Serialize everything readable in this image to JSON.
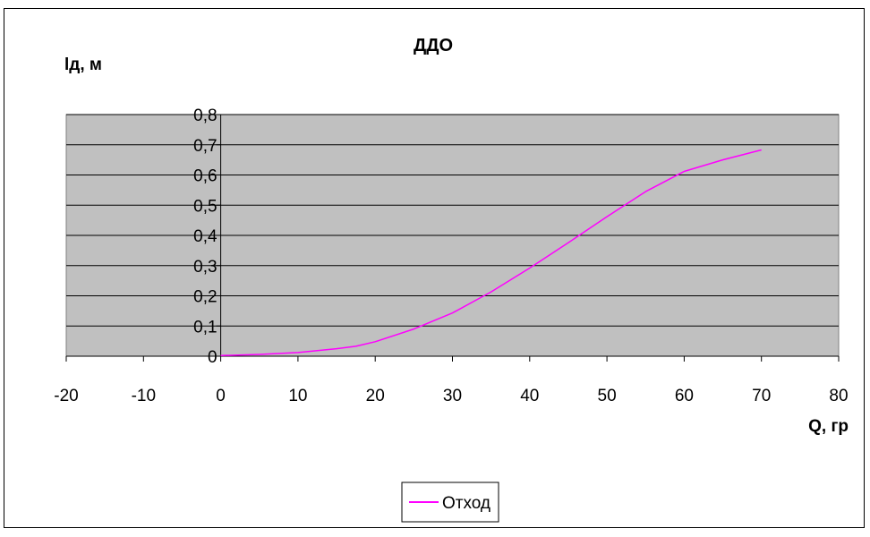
{
  "chart_data": {
    "type": "line",
    "title": "ДДО",
    "xlabel": "Q, гр",
    "ylabel": "lд, м",
    "xlim": [
      -20,
      80
    ],
    "ylim": [
      0,
      0.8
    ],
    "x_ticks": [
      -20,
      -10,
      0,
      10,
      20,
      30,
      40,
      50,
      60,
      70,
      80
    ],
    "x_tick_labels": [
      "-20",
      "-10",
      "0",
      "10",
      "20",
      "30",
      "40",
      "50",
      "60",
      "70",
      "80"
    ],
    "y_ticks": [
      0,
      0.1,
      0.2,
      0.3,
      0.4,
      0.5,
      0.6,
      0.7,
      0.8
    ],
    "y_tick_labels": [
      "0",
      "0,1",
      "0,2",
      "0,3",
      "0,4",
      "0,5",
      "0,6",
      "0,7",
      "0,8"
    ],
    "grid": true,
    "grid_axis": "y",
    "plot_background": "#c0c0c0",
    "legend_position": "bottom-center",
    "series": [
      {
        "name": "Отход",
        "color": "#ff00ff",
        "x": [
          0,
          5,
          10,
          15,
          17.5,
          20,
          25,
          30,
          35,
          40,
          45,
          50,
          55,
          60,
          65,
          70
        ],
        "y": [
          0.002,
          0.006,
          0.012,
          0.025,
          0.033,
          0.048,
          0.09,
          0.143,
          0.213,
          0.292,
          0.376,
          0.462,
          0.545,
          0.612,
          0.65,
          0.683
        ]
      }
    ]
  }
}
